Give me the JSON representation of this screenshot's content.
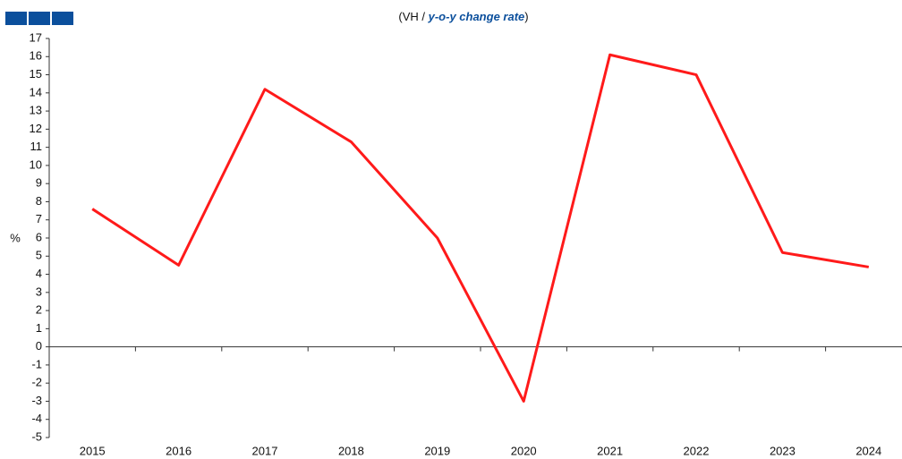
{
  "chart_data": {
    "type": "line",
    "title": [
      "(VH / ",
      "y-o-y change rate",
      ")"
    ],
    "y_label": "%",
    "categories": [
      "2015",
      "2016",
      "2017",
      "2018",
      "2019",
      "2020",
      "2021",
      "2022",
      "2023",
      "2024"
    ],
    "series": [
      {
        "name": "VH",
        "color": "#ff1a1a",
        "values": [
          7.6,
          4.5,
          14.2,
          11.3,
          6.0,
          -3.0,
          16.1,
          15.0,
          5.2,
          4.4
        ]
      }
    ],
    "ylim": [
      -5,
      17
    ],
    "yticks": [
      -5,
      -4,
      -3,
      -2,
      -1,
      0,
      1,
      2,
      3,
      4,
      5,
      6,
      7,
      8,
      9,
      10,
      11,
      12,
      13,
      14,
      15,
      16,
      17
    ],
    "grid": false
  }
}
